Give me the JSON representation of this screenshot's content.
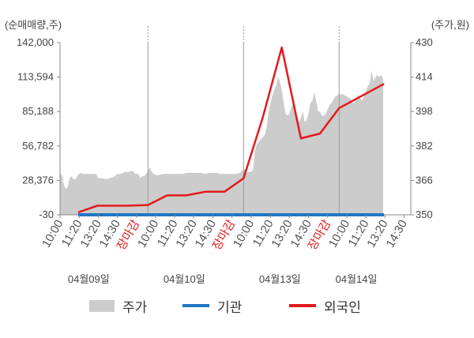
{
  "chart_data": {
    "type": "line",
    "title": "",
    "left_axis": {
      "unit_label": "(순매매량,주)",
      "ticks": [
        "142,000",
        "113,594",
        "85,188",
        "56,782",
        "28,376",
        "-30"
      ],
      "ylim": [
        -30,
        142000
      ]
    },
    "right_axis": {
      "unit_label": "(주가,원)",
      "ticks": [
        "430",
        "414",
        "398",
        "382",
        "366",
        "350"
      ],
      "ylim": [
        350,
        430
      ]
    },
    "x_ticks": [
      {
        "label": "10:00",
        "close": false
      },
      {
        "label": "11:20",
        "close": false
      },
      {
        "label": "13:20",
        "close": false
      },
      {
        "label": "14:30",
        "close": false
      },
      {
        "label": "장마감",
        "close": true
      },
      {
        "label": "10:00",
        "close": false
      },
      {
        "label": "11:20",
        "close": false
      },
      {
        "label": "13:20",
        "close": false
      },
      {
        "label": "14:30",
        "close": false
      },
      {
        "label": "장마감",
        "close": true
      },
      {
        "label": "10:00",
        "close": false
      },
      {
        "label": "11:20",
        "close": false
      },
      {
        "label": "13:20",
        "close": false
      },
      {
        "label": "14:30",
        "close": false
      },
      {
        "label": "장마감",
        "close": true
      },
      {
        "label": "10:00",
        "close": false
      },
      {
        "label": "11:20",
        "close": false
      },
      {
        "label": "13:20",
        "close": false
      },
      {
        "label": "14:30",
        "close": false
      }
    ],
    "dates": [
      "04월09일",
      "04월10일",
      "04월13일",
      "04월14일"
    ],
    "date_tick_index": [
      1.5,
      6.5,
      11.5,
      15.5
    ],
    "day_separators": [
      4.6,
      9.6,
      14.6
    ],
    "series": [
      {
        "name": "주가",
        "kind": "area",
        "axis": "right",
        "color": "#cccccc",
        "points": [
          [
            0.0,
            369.2
          ],
          [
            0.1,
            368.5
          ],
          [
            0.2,
            364
          ],
          [
            0.3,
            362
          ],
          [
            0.4,
            363
          ],
          [
            0.5,
            367
          ],
          [
            0.6,
            368
          ],
          [
            0.7,
            366.5
          ],
          [
            0.8,
            366.5
          ],
          [
            0.9,
            368
          ],
          [
            1.0,
            369
          ],
          [
            1.1,
            369.5
          ],
          [
            1.2,
            369
          ],
          [
            1.3,
            369
          ],
          [
            1.5,
            369
          ],
          [
            1.7,
            369
          ],
          [
            1.9,
            369
          ],
          [
            2.0,
            367
          ],
          [
            2.2,
            367
          ],
          [
            2.4,
            366.5
          ],
          [
            2.6,
            367
          ],
          [
            2.8,
            367.5
          ],
          [
            3.0,
            369
          ],
          [
            3.2,
            369
          ],
          [
            3.4,
            370
          ],
          [
            3.6,
            370
          ],
          [
            3.8,
            370.5
          ],
          [
            3.9,
            369
          ],
          [
            4.0,
            369
          ],
          [
            4.1,
            369
          ],
          [
            4.2,
            367
          ],
          [
            4.3,
            368
          ],
          [
            4.4,
            368
          ],
          [
            4.5,
            369
          ],
          [
            4.6,
            370.5
          ],
          [
            4.7,
            372
          ],
          [
            4.8,
            370
          ],
          [
            4.9,
            369
          ],
          [
            5.0,
            368.5
          ],
          [
            5.2,
            368.5
          ],
          [
            5.4,
            369
          ],
          [
            5.6,
            369
          ],
          [
            5.8,
            369
          ],
          [
            6.0,
            369
          ],
          [
            6.2,
            369
          ],
          [
            6.4,
            369
          ],
          [
            6.6,
            369.5
          ],
          [
            6.8,
            369.5
          ],
          [
            7.0,
            369.5
          ],
          [
            7.2,
            369.5
          ],
          [
            7.4,
            369.5
          ],
          [
            7.6,
            369
          ],
          [
            7.8,
            369.5
          ],
          [
            8.0,
            369.5
          ],
          [
            8.2,
            369.5
          ],
          [
            8.4,
            369
          ],
          [
            8.6,
            369
          ],
          [
            8.8,
            369
          ],
          [
            9.0,
            369
          ],
          [
            9.2,
            369
          ],
          [
            9.4,
            369.5
          ],
          [
            9.6,
            371
          ],
          [
            9.7,
            371
          ],
          [
            9.8,
            369.5
          ],
          [
            9.9,
            370
          ],
          [
            10.0,
            370
          ],
          [
            10.1,
            371
          ],
          [
            10.2,
            380
          ],
          [
            10.3,
            383
          ],
          [
            10.4,
            384
          ],
          [
            10.5,
            385
          ],
          [
            10.6,
            386
          ],
          [
            10.7,
            387
          ],
          [
            10.8,
            390
          ],
          [
            10.9,
            397
          ],
          [
            11.0,
            402
          ],
          [
            11.1,
            405
          ],
          [
            11.2,
            408
          ],
          [
            11.3,
            410
          ],
          [
            11.4,
            414
          ],
          [
            11.5,
            412
          ],
          [
            11.6,
            408
          ],
          [
            11.7,
            402
          ],
          [
            11.8,
            397
          ],
          [
            11.9,
            396
          ],
          [
            12.0,
            397
          ],
          [
            12.1,
            400
          ],
          [
            12.2,
            402
          ],
          [
            12.3,
            400
          ],
          [
            12.4,
            396
          ],
          [
            12.5,
            393
          ],
          [
            12.6,
            395
          ],
          [
            12.7,
            398
          ],
          [
            12.8,
            393
          ],
          [
            12.9,
            394
          ],
          [
            13.0,
            397
          ],
          [
            13.1,
            402
          ],
          [
            13.2,
            403
          ],
          [
            13.3,
            407
          ],
          [
            13.4,
            403
          ],
          [
            13.5,
            398
          ],
          [
            13.6,
            398
          ],
          [
            13.7,
            396
          ],
          [
            13.8,
            396
          ],
          [
            13.9,
            397
          ],
          [
            14.0,
            399
          ],
          [
            14.1,
            401
          ],
          [
            14.2,
            402
          ],
          [
            14.4,
            405
          ],
          [
            14.6,
            406
          ],
          [
            14.8,
            406
          ],
          [
            15.0,
            405
          ],
          [
            15.2,
            404
          ],
          [
            15.3,
            402
          ],
          [
            15.4,
            402
          ],
          [
            15.5,
            404
          ],
          [
            15.6,
            406
          ],
          [
            15.7,
            404
          ],
          [
            15.8,
            403
          ],
          [
            15.9,
            405
          ],
          [
            16.0,
            407
          ],
          [
            16.1,
            410
          ],
          [
            16.2,
            411
          ],
          [
            16.3,
            417
          ],
          [
            16.4,
            412
          ],
          [
            16.5,
            414
          ],
          [
            16.6,
            415
          ],
          [
            16.7,
            414
          ],
          [
            16.8,
            415
          ],
          [
            16.9,
            413
          ]
        ]
      },
      {
        "name": "기관",
        "kind": "line",
        "axis": "left",
        "color": "#1f77c4",
        "points": [
          [
            0.95,
            -30
          ],
          [
            16.95,
            -30
          ]
        ]
      },
      {
        "name": "외국인",
        "kind": "line",
        "axis": "left",
        "color": "#e31a1c",
        "points": [
          [
            0.95,
            2000
          ],
          [
            1.95,
            7500
          ],
          [
            3.45,
            7500
          ],
          [
            4.6,
            8000
          ],
          [
            5.6,
            16000
          ],
          [
            6.6,
            16000
          ],
          [
            7.6,
            19000
          ],
          [
            8.6,
            19000
          ],
          [
            9.6,
            30000
          ],
          [
            10.6,
            80000
          ],
          [
            11.6,
            138000
          ],
          [
            12.6,
            63000
          ],
          [
            13.6,
            67000
          ],
          [
            14.6,
            88000
          ],
          [
            16.95,
            108000
          ]
        ]
      }
    ],
    "legend": [
      "주가",
      "기관",
      "외국인"
    ],
    "legend_position": "bottom"
  },
  "legend": {
    "price": "주가",
    "institution": "기관",
    "foreign": "외국인"
  }
}
